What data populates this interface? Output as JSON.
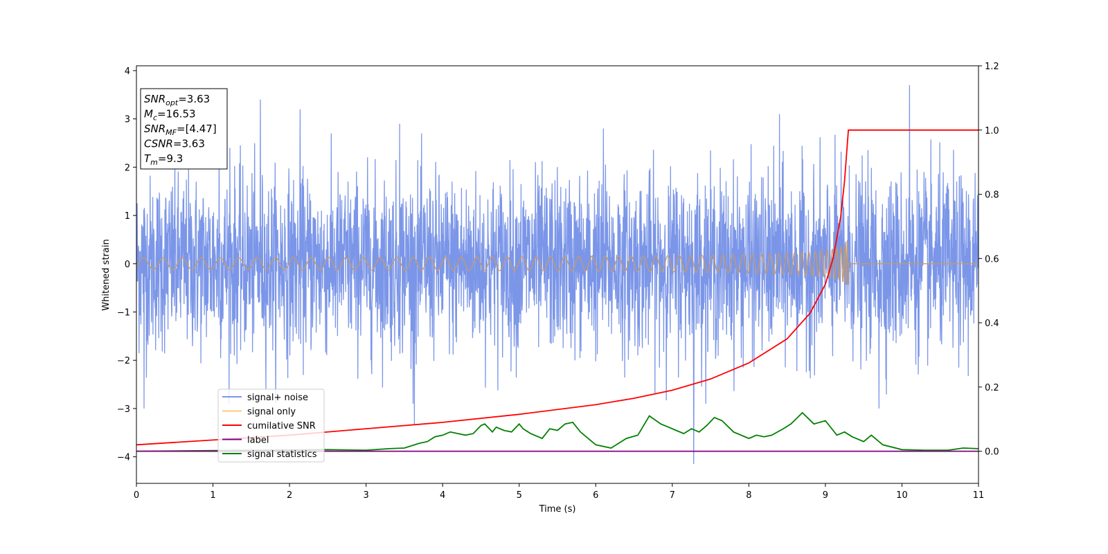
{
  "chart_data": {
    "type": "line",
    "xlabel": "Time (s)",
    "ylabel": "Whitened strain",
    "xlim": [
      0,
      11
    ],
    "ylim_left": [
      -4.55,
      4.1
    ],
    "ylim_right": [
      -0.1,
      1.2
    ],
    "xticks": [
      "0",
      "1",
      "2",
      "3",
      "4",
      "5",
      "6",
      "7",
      "8",
      "9",
      "10",
      "11"
    ],
    "yticks_left": [
      "−4",
      "−3",
      "−2",
      "−1",
      "0",
      "1",
      "2",
      "3",
      "4"
    ],
    "yticks_right": [
      "0.0",
      "0.2",
      "0.4",
      "0.6",
      "0.8",
      "1.0",
      "1.2"
    ],
    "yticks_left_values": [
      -4,
      -3,
      -2,
      -1,
      0,
      1,
      2,
      3,
      4
    ],
    "yticks_right_values": [
      0.0,
      0.2,
      0.4,
      0.6,
      0.8,
      1.0,
      1.2
    ],
    "legend_position": "lower-left",
    "annotation": {
      "lines": [
        {
          "sym": "SNR",
          "sub": "opt",
          "val": "=3.63"
        },
        {
          "sym": "M",
          "sub": "c",
          "val": "=16.53"
        },
        {
          "sym": "SNR",
          "sub": "MF",
          "val": "=[4.47]"
        },
        {
          "sym": "CSNR",
          "sub": "",
          "val": "=3.63"
        },
        {
          "sym": "T",
          "sub": "m",
          "val": "=9.3"
        }
      ]
    },
    "series": [
      {
        "name": "signal+ noise",
        "color": "#7b96e8",
        "axis": "left",
        "noise_amplitude": 2.0,
        "noise_range": [
          -4.2,
          3.7
        ],
        "peaks": [
          [
            1.22,
            2.4
          ],
          [
            1.62,
            3.4
          ],
          [
            2.14,
            3.2
          ],
          [
            3.44,
            2.9
          ],
          [
            6.1,
            2.8
          ],
          [
            7.28,
            -4.15
          ],
          [
            8.4,
            3.1
          ],
          [
            9.7,
            -3.0
          ],
          [
            10.1,
            3.7
          ],
          [
            0.1,
            -3.0
          ],
          [
            3.63,
            -3.35
          ],
          [
            1.08,
            2.9
          ]
        ]
      },
      {
        "name": "signal only",
        "color": "#fdcb7c",
        "plot_color": "#c49a6c",
        "axis": "left",
        "merger_time": 9.3,
        "peak_amplitude": 0.62
      },
      {
        "name": "cumilative SNR",
        "color": "#ff0000",
        "axis": "right",
        "x": [
          0,
          1,
          2,
          3,
          4,
          5,
          6,
          6.5,
          7,
          7.5,
          8,
          8.5,
          8.8,
          9.0,
          9.1,
          9.2,
          9.25,
          9.3,
          9.31,
          11
        ],
        "y": [
          0.02,
          0.035,
          0.05,
          0.07,
          0.09,
          0.115,
          0.145,
          0.165,
          0.19,
          0.225,
          0.275,
          0.35,
          0.43,
          0.52,
          0.6,
          0.73,
          0.84,
          1.0,
          1.0,
          1.0
        ]
      },
      {
        "name": "label",
        "color": "#800080",
        "axis": "right",
        "x": [
          0,
          11
        ],
        "y": [
          0.0,
          0.0
        ]
      },
      {
        "name": "signal statistics",
        "color": "#008000",
        "axis": "right",
        "x": [
          0,
          1,
          2,
          2.5,
          3,
          3.3,
          3.5,
          3.7,
          3.8,
          3.9,
          4.0,
          4.1,
          4.2,
          4.3,
          4.4,
          4.5,
          4.55,
          4.65,
          4.7,
          4.8,
          4.9,
          5.0,
          5.05,
          5.15,
          5.3,
          5.4,
          5.5,
          5.6,
          5.7,
          5.8,
          6.0,
          6.2,
          6.4,
          6.55,
          6.7,
          6.85,
          6.95,
          7.05,
          7.15,
          7.25,
          7.35,
          7.45,
          7.55,
          7.65,
          7.8,
          8.0,
          8.1,
          8.2,
          8.3,
          8.45,
          8.55,
          8.7,
          8.85,
          9.0,
          9.15,
          9.25,
          9.35,
          9.5,
          9.6,
          9.75,
          10.0,
          10.3,
          10.6,
          10.8,
          11.0
        ],
        "y": [
          0.0,
          0.002,
          0.004,
          0.005,
          0.003,
          0.008,
          0.01,
          0.025,
          0.03,
          0.045,
          0.05,
          0.06,
          0.055,
          0.05,
          0.055,
          0.08,
          0.085,
          0.06,
          0.075,
          0.065,
          0.06,
          0.085,
          0.07,
          0.055,
          0.04,
          0.07,
          0.065,
          0.085,
          0.09,
          0.06,
          0.02,
          0.01,
          0.04,
          0.05,
          0.11,
          0.085,
          0.075,
          0.065,
          0.055,
          0.07,
          0.06,
          0.08,
          0.105,
          0.095,
          0.06,
          0.04,
          0.05,
          0.045,
          0.05,
          0.07,
          0.085,
          0.12,
          0.085,
          0.095,
          0.05,
          0.06,
          0.045,
          0.03,
          0.05,
          0.02,
          0.005,
          0.003,
          0.003,
          0.01,
          0.008
        ]
      }
    ]
  }
}
